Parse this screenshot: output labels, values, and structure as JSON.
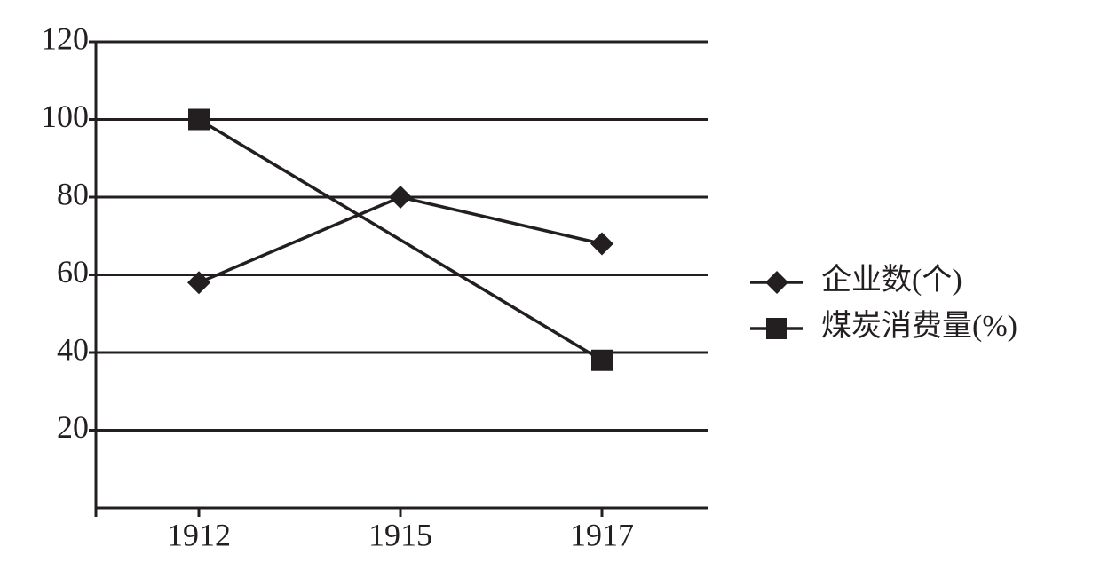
{
  "chart_data": {
    "type": "line",
    "categories": [
      "1912",
      "1915",
      "1917"
    ],
    "series": [
      {
        "name": "企业数(个)",
        "color": "#231f20",
        "marker": "diamond",
        "values": [
          58,
          80,
          68
        ]
      },
      {
        "name": "煤炭消费量(%)",
        "color": "#231f20",
        "marker": "square",
        "values": [
          100,
          null,
          38
        ]
      }
    ],
    "connect_gaps": true,
    "ylim": [
      0,
      120
    ],
    "yticks": [
      20,
      40,
      60,
      80,
      100,
      120
    ],
    "grid": true,
    "legend": "right"
  }
}
